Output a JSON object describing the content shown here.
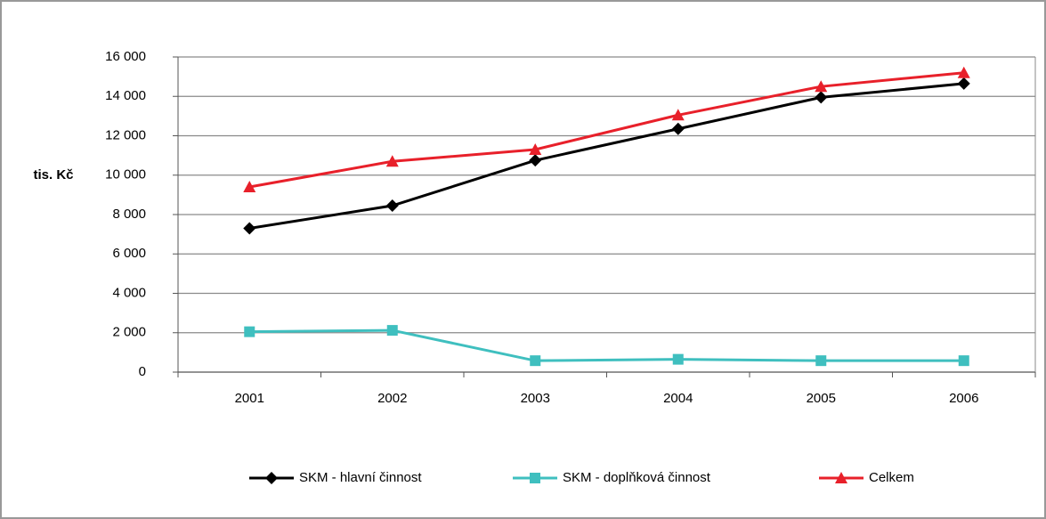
{
  "chart_data": {
    "type": "line",
    "y_label": "tis. Kč",
    "categories": [
      "2001",
      "2002",
      "2003",
      "2004",
      "2005",
      "2006"
    ],
    "series": [
      {
        "name": "SKM - hlavní činnost",
        "color": "#000000",
        "marker": "diamond",
        "values": [
          7300,
          8450,
          10750,
          12350,
          13950,
          14650
        ]
      },
      {
        "name": "SKM - doplňková činnost",
        "color": "#3fbfbf",
        "marker": "square",
        "values": [
          2050,
          2120,
          580,
          650,
          580,
          580
        ]
      },
      {
        "name": "Celkem",
        "color": "#e8202a",
        "marker": "triangle",
        "values": [
          9400,
          10700,
          11300,
          13050,
          14500,
          15200
        ]
      }
    ],
    "ylim": [
      0,
      16000
    ],
    "yticks": [
      0,
      {
        "value": 2000,
        "label": "2 000"
      },
      {
        "value": 4000,
        "label": "4 000"
      },
      {
        "value": 6000,
        "label": "6 000"
      },
      {
        "value": 8000,
        "label": "8 000"
      },
      {
        "value": 10000,
        "label": "10 000"
      },
      {
        "value": 12000,
        "label": "12 000"
      },
      {
        "value": 14000,
        "label": "14 000"
      },
      {
        "value": 16000,
        "label": "16 000"
      }
    ],
    "grid": true,
    "legend": "bottom"
  }
}
